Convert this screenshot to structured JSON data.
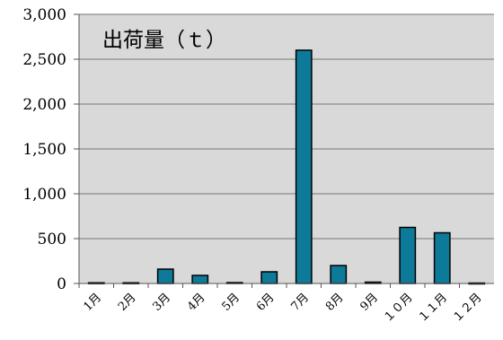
{
  "chart_data": {
    "type": "bar",
    "title": "出荷量（ｔ）",
    "xlabel": "",
    "ylabel": "",
    "categories": [
      "1月",
      "2月",
      "3月",
      "4月",
      "5月",
      "6月",
      "7月",
      "8月",
      "9月",
      "１０月",
      "１１月",
      "１２月"
    ],
    "values": [
      8,
      8,
      160,
      90,
      10,
      130,
      2600,
      200,
      15,
      625,
      565,
      5
    ],
    "ylim": [
      0,
      3000
    ],
    "yticks": [
      0,
      500,
      1000,
      1500,
      2000,
      2500,
      3000
    ],
    "ytick_labels": [
      "0",
      "500",
      "1,000",
      "1,500",
      "2,000",
      "2,500",
      "3,000"
    ],
    "grid": true,
    "legend": "none",
    "colors": {
      "bar": "#0e7a9a",
      "bar_edge": "#000000",
      "plot_background": "#d9d9d9",
      "gridline": "#8c8c8c"
    }
  }
}
